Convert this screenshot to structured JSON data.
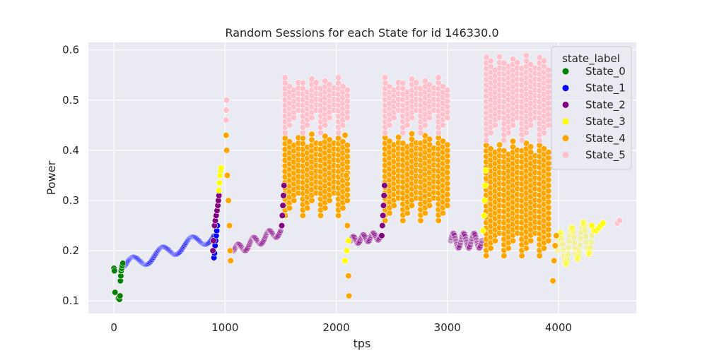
{
  "chart_data": {
    "type": "scatter",
    "title": "Random Sessions for each State for id 146330.0",
    "xlabel": "tps",
    "ylabel": "Power",
    "xlim": [
      -230,
      4700
    ],
    "ylim": [
      0.075,
      0.615
    ],
    "xticks": [
      0,
      1000,
      2000,
      3000,
      4000
    ],
    "yticks": [
      0.1,
      0.2,
      0.3,
      0.4,
      0.5,
      0.6
    ],
    "grid": true,
    "legend_placement": "top-right",
    "legend_title": "state_label",
    "series": [
      {
        "name": "State_0",
        "color": "#008000",
        "points": [
          [
            0,
            0.165
          ],
          [
            5,
            0.16
          ],
          [
            10,
            0.117
          ],
          [
            40,
            0.105
          ],
          [
            50,
            0.103
          ],
          [
            55,
            0.11
          ],
          [
            58,
            0.14
          ],
          [
            62,
            0.15
          ],
          [
            65,
            0.16
          ],
          [
            70,
            0.165
          ],
          [
            75,
            0.17
          ],
          [
            80,
            0.175
          ]
        ]
      },
      {
        "name": "State_1",
        "color": "#0000ff",
        "points": [
          [
            900,
            0.186
          ],
          [
            905,
            0.195
          ],
          [
            910,
            0.21
          ],
          [
            915,
            0.22
          ],
          [
            920,
            0.23
          ],
          [
            925,
            0.24
          ],
          [
            930,
            0.25
          ]
        ]
      },
      {
        "name": "State_2",
        "color": "#800080",
        "points": [
          [
            890,
            0.2
          ],
          [
            895,
            0.22
          ],
          [
            905,
            0.25
          ],
          [
            912,
            0.26
          ],
          [
            920,
            0.27
          ],
          [
            928,
            0.28
          ],
          [
            935,
            0.29
          ],
          [
            940,
            0.3
          ],
          [
            945,
            0.31
          ],
          [
            1510,
            0.25
          ],
          [
            1515,
            0.27
          ],
          [
            1520,
            0.29
          ],
          [
            1525,
            0.31
          ],
          [
            1530,
            0.33
          ],
          [
            2410,
            0.23
          ],
          [
            2415,
            0.25
          ],
          [
            2420,
            0.27
          ],
          [
            2425,
            0.29
          ],
          [
            2430,
            0.31
          ],
          [
            2435,
            0.33
          ]
        ]
      },
      {
        "name": "State_3",
        "color": "#ffff00",
        "points": [
          [
            945,
            0.32
          ],
          [
            950,
            0.335
          ],
          [
            955,
            0.35
          ],
          [
            960,
            0.36
          ],
          [
            965,
            0.365
          ],
          [
            2080,
            0.18
          ],
          [
            2095,
            0.2
          ],
          [
            2110,
            0.22
          ],
          [
            3320,
            0.24
          ],
          [
            3330,
            0.27
          ],
          [
            3335,
            0.3
          ],
          [
            3340,
            0.33
          ],
          [
            3345,
            0.36
          ],
          [
            4300,
            0.25
          ],
          [
            4320,
            0.24
          ],
          [
            4340,
            0.24
          ],
          [
            4360,
            0.245
          ],
          [
            4380,
            0.25
          ],
          [
            4400,
            0.255
          ]
        ]
      },
      {
        "name": "State_4",
        "color": "#ffa500",
        "points": [
          [
            1010,
            0.43
          ],
          [
            1015,
            0.4
          ],
          [
            1020,
            0.35
          ],
          [
            1030,
            0.3
          ],
          [
            1040,
            0.25
          ],
          [
            1045,
            0.2
          ],
          [
            1050,
            0.18
          ],
          [
            2080,
            0.43
          ],
          [
            2090,
            0.35
          ],
          [
            2100,
            0.25
          ],
          [
            2110,
            0.15
          ],
          [
            2115,
            0.11
          ],
          [
            3950,
            0.14
          ],
          [
            3960,
            0.18
          ],
          [
            3970,
            0.21
          ],
          [
            3980,
            0.23
          ]
        ]
      },
      {
        "name": "State_5",
        "color": "#ffc0cb",
        "points": [
          [
            1010,
            0.46
          ],
          [
            1012,
            0.48
          ],
          [
            1015,
            0.5
          ],
          [
            4530,
            0.255
          ],
          [
            4550,
            0.26
          ]
        ]
      }
    ],
    "vertical_bands": [
      {
        "series": "State_4",
        "x_start": 1540,
        "x_end": 2120,
        "y_low": 0.27,
        "y_high": 0.435,
        "step": 40
      },
      {
        "series": "State_5",
        "x_start": 1540,
        "x_end": 2120,
        "y_low": 0.435,
        "y_high": 0.545,
        "step": 40
      },
      {
        "series": "State_4",
        "x_start": 2440,
        "x_end": 3020,
        "y_low": 0.26,
        "y_high": 0.435,
        "step": 40
      },
      {
        "series": "State_5",
        "x_start": 2440,
        "x_end": 3020,
        "y_low": 0.435,
        "y_high": 0.545,
        "step": 40
      },
      {
        "series": "State_4",
        "x_start": 3350,
        "x_end": 3930,
        "y_low": 0.19,
        "y_high": 0.42,
        "step": 40
      },
      {
        "series": "State_5",
        "x_start": 3350,
        "x_end": 3930,
        "y_low": 0.42,
        "y_high": 0.59,
        "step": 40
      }
    ],
    "transition_curves": [
      {
        "series": "State_1",
        "x_start": 100,
        "x_end": 900,
        "y_start": 0.17,
        "y_end": 0.23,
        "wave": 0.012
      },
      {
        "series": "State_2",
        "x_start": 1080,
        "x_end": 1500,
        "y_start": 0.2,
        "y_end": 0.24,
        "wave": 0.01
      },
      {
        "series": "State_2",
        "x_start": 2130,
        "x_end": 2400,
        "y_start": 0.22,
        "y_end": 0.23,
        "wave": 0.008
      },
      {
        "series": "State_2",
        "x_start": 3030,
        "x_end": 3310,
        "y_start": 0.22,
        "y_end": 0.22,
        "wave": 0.015
      },
      {
        "series": "State_3",
        "x_start": 3990,
        "x_end": 4300,
        "y_start": 0.2,
        "y_end": 0.23,
        "wave": 0.035
      }
    ]
  }
}
